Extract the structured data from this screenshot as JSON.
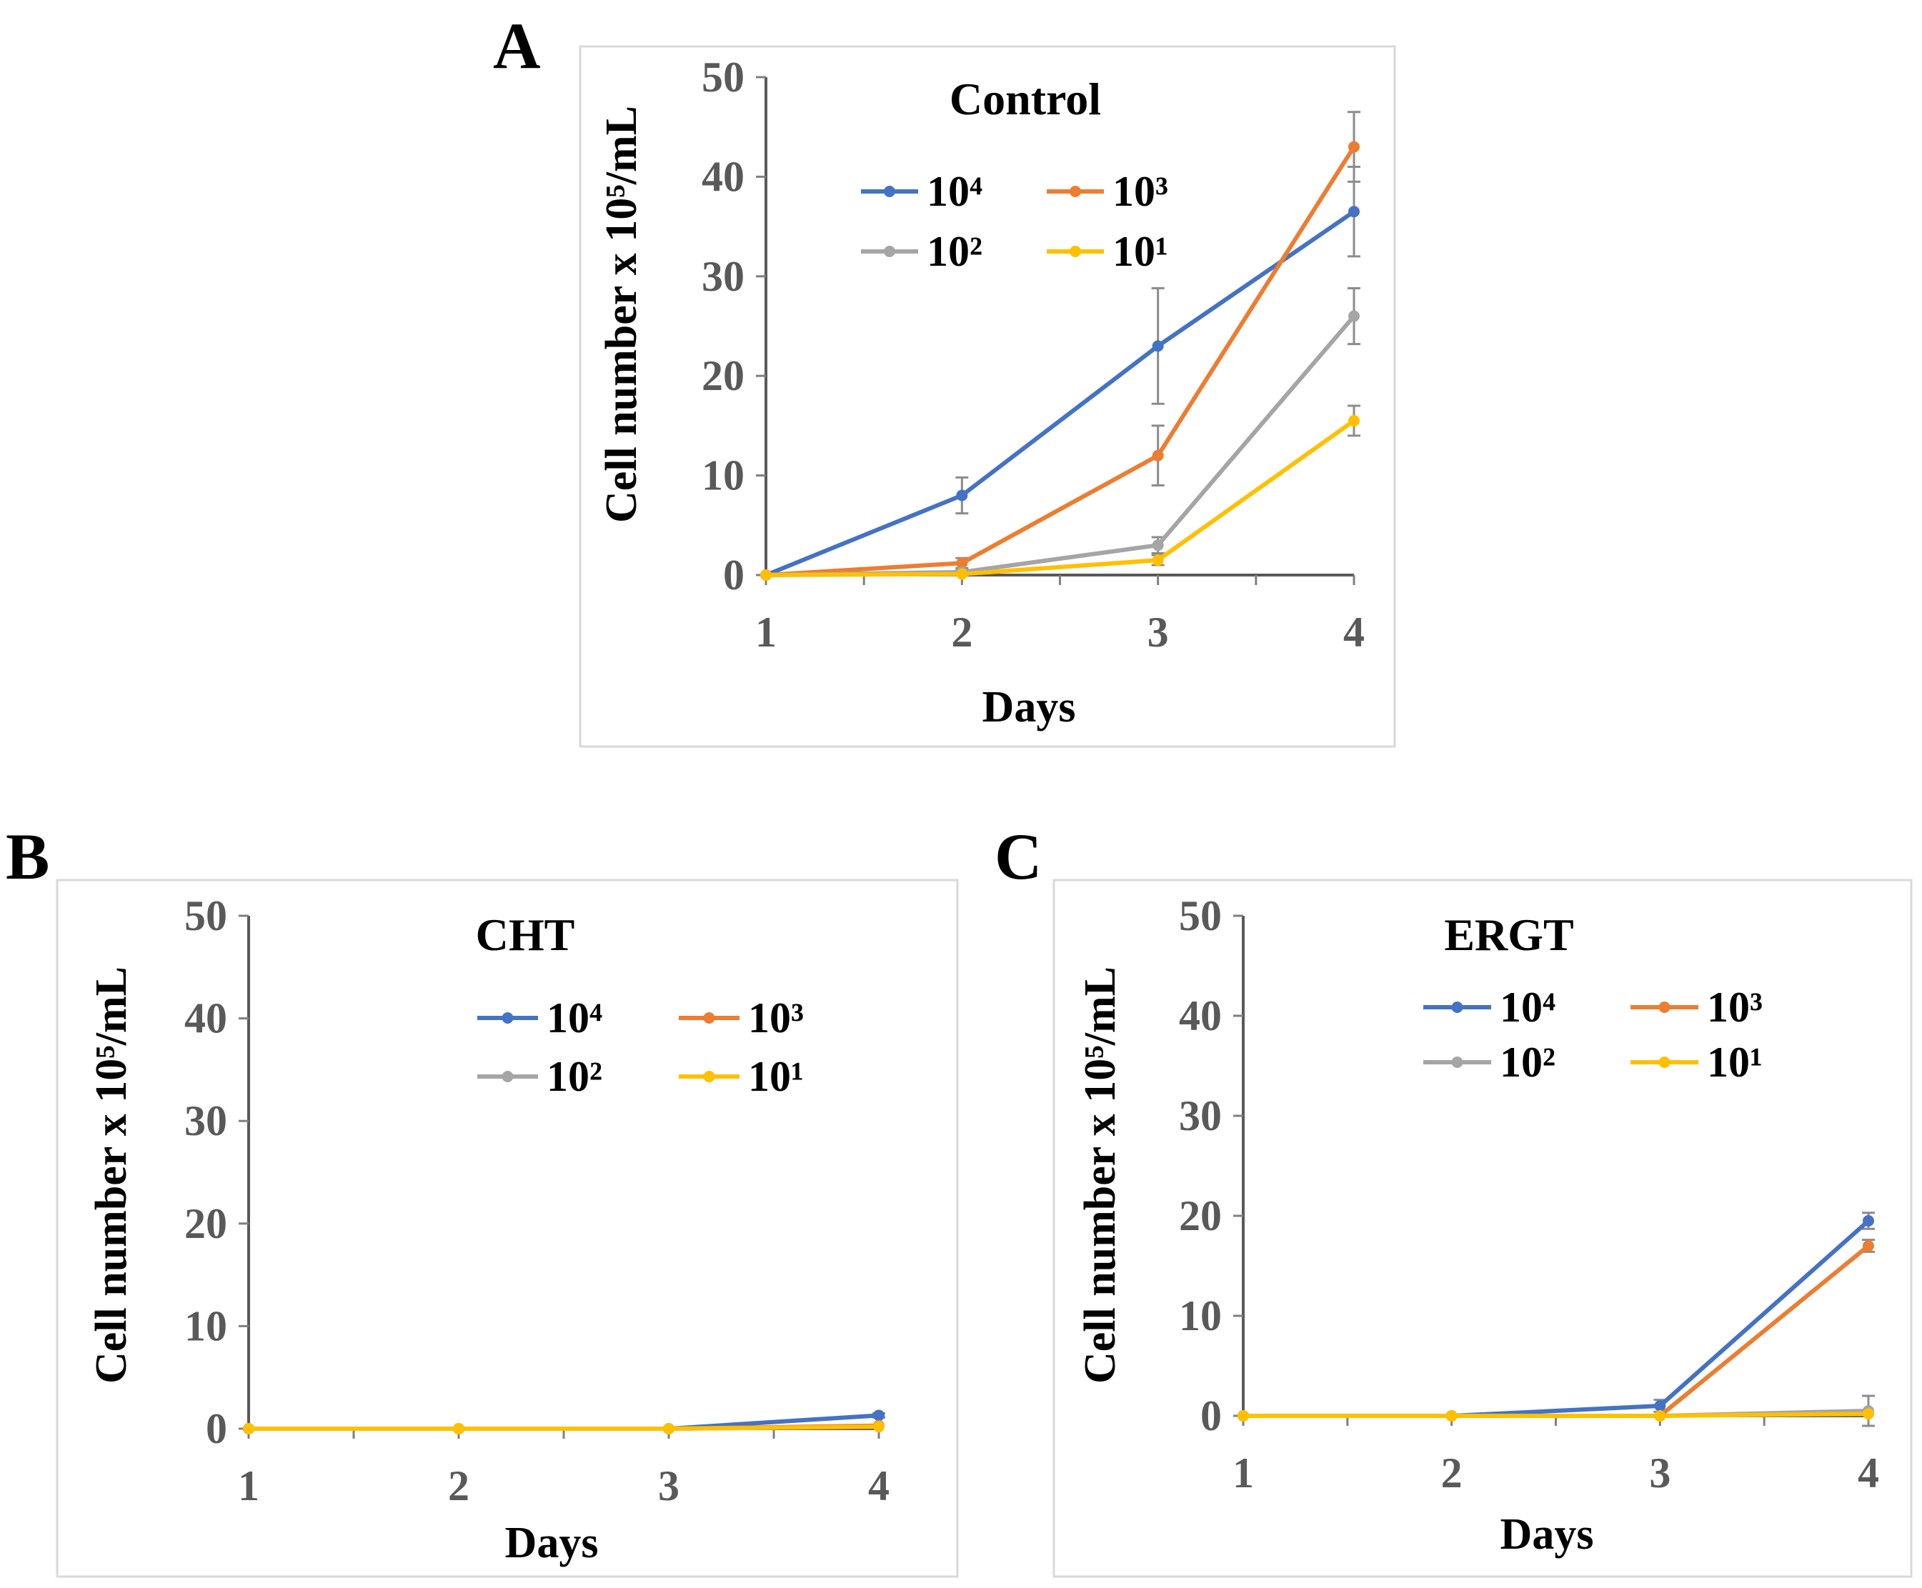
{
  "chart_data": [
    {
      "panel": "A",
      "type": "line",
      "title": "Control",
      "xlabel": "Days",
      "ylabel": "Cell number x 10⁵/mL",
      "categories": [
        "1",
        "2",
        "3",
        "4"
      ],
      "ylim": [
        0,
        50
      ],
      "yticks": [
        "0",
        "10",
        "20",
        "30",
        "40",
        "50"
      ],
      "legend_position": "top",
      "series": [
        {
          "name": "10⁴",
          "color": "#4472c4",
          "values": [
            0,
            8,
            23,
            36.5
          ],
          "errors": [
            0,
            1.8,
            5.8,
            4.5
          ]
        },
        {
          "name": "10³",
          "color": "#ed7d31",
          "values": [
            0,
            1.2,
            12,
            43
          ],
          "errors": [
            0,
            0.5,
            3,
            3.5
          ]
        },
        {
          "name": "10²",
          "color": "#a5a5a5",
          "values": [
            0,
            0.3,
            3,
            26
          ],
          "errors": [
            0,
            0.2,
            0.8,
            2.8
          ]
        },
        {
          "name": "10¹",
          "color": "#ffc000",
          "values": [
            0,
            0.1,
            1.5,
            15.5
          ],
          "errors": [
            0,
            0.1,
            0.5,
            1.5
          ]
        }
      ]
    },
    {
      "panel": "B",
      "type": "line",
      "title": "CHT",
      "xlabel": "Days",
      "ylabel": "Cell number x 10⁵/mL",
      "categories": [
        "1",
        "2",
        "3",
        "4"
      ],
      "ylim": [
        0,
        50
      ],
      "yticks": [
        "0",
        "10",
        "20",
        "30",
        "40",
        "50"
      ],
      "legend_position": "top-right",
      "series": [
        {
          "name": "10⁴",
          "color": "#4472c4",
          "values": [
            0,
            0,
            0,
            1.3
          ],
          "errors": [
            0,
            0,
            0,
            0.2
          ]
        },
        {
          "name": "10³",
          "color": "#ed7d31",
          "values": [
            0,
            0,
            0,
            0.3
          ],
          "errors": [
            0,
            0,
            0,
            0
          ]
        },
        {
          "name": "10²",
          "color": "#a5a5a5",
          "values": [
            0,
            0,
            0,
            0.2
          ],
          "errors": [
            0,
            0,
            0,
            0
          ]
        },
        {
          "name": "10¹",
          "color": "#ffc000",
          "values": [
            0,
            0,
            0,
            0.2
          ],
          "errors": [
            0,
            0,
            0,
            0
          ]
        }
      ]
    },
    {
      "panel": "C",
      "type": "line",
      "title": "ERGT",
      "xlabel": "Days",
      "ylabel": "Cell number x 10⁵/mL",
      "categories": [
        "1",
        "2",
        "3",
        "4"
      ],
      "ylim": [
        0,
        50
      ],
      "yticks": [
        "0",
        "10",
        "20",
        "30",
        "40",
        "50"
      ],
      "legend_position": "top",
      "series": [
        {
          "name": "10⁴",
          "color": "#4472c4",
          "values": [
            0,
            0,
            1,
            19.5
          ],
          "errors": [
            0,
            0,
            0.6,
            0.8
          ]
        },
        {
          "name": "10³",
          "color": "#ed7d31",
          "values": [
            0,
            0,
            0,
            17
          ],
          "errors": [
            0,
            0,
            0,
            0.6
          ]
        },
        {
          "name": "10²",
          "color": "#a5a5a5",
          "values": [
            0,
            0,
            0,
            0.5
          ],
          "errors": [
            0,
            0,
            0,
            1.5
          ]
        },
        {
          "name": "10¹",
          "color": "#ffc000",
          "values": [
            0,
            0,
            0,
            0.2
          ],
          "errors": [
            0,
            0,
            0,
            0
          ]
        }
      ]
    }
  ]
}
